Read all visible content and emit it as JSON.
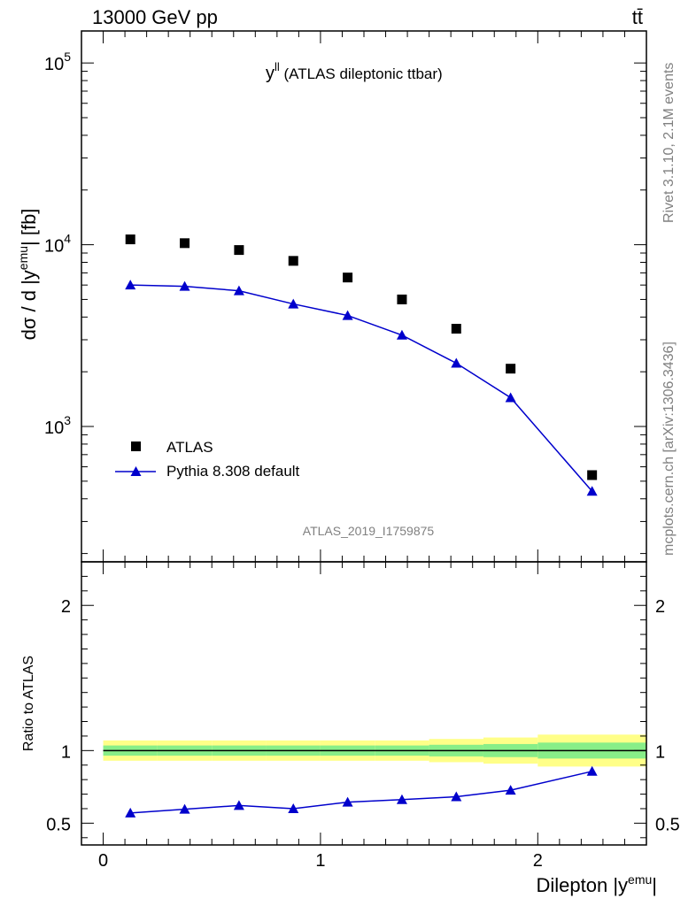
{
  "header": {
    "energy_label": "13000 GeV pp",
    "process_label": "tt̄"
  },
  "side_labels": {
    "rivet": "Rivet 3.1.10,  2.1M events",
    "mcplots": "mcplots.cern.ch [arXiv:1306.3436]"
  },
  "chart_data": [
    {
      "type": "scatter",
      "title_main": "y",
      "title_sup": "ll",
      "title_rest": " (ATLAS dileptonic ttbar)",
      "ylabel_main": "dσ / d |y",
      "ylabel_sup": "emu",
      "ylabel_rest": "| [fb]",
      "yscale": "log",
      "xlim": [
        -0.1,
        2.5
      ],
      "ylim": [
        180,
        150000
      ],
      "yticks": [
        {
          "value": 1000,
          "base": "10",
          "exp": "3"
        },
        {
          "value": 10000,
          "base": "10",
          "exp": "4"
        },
        {
          "value": 100000,
          "base": "10",
          "exp": "5"
        }
      ],
      "watermark": "ATLAS_2019_I1759875",
      "legend_position": "bottom-left",
      "series": [
        {
          "name": "ATLAS",
          "color": "#000000",
          "marker": "square",
          "x": [
            0.125,
            0.375,
            0.625,
            0.875,
            1.125,
            1.375,
            1.625,
            1.875,
            2.25
          ],
          "y": [
            10700,
            10200,
            9350,
            8150,
            6600,
            5000,
            3450,
            2080,
            540
          ]
        },
        {
          "name": "Pythia 8.308 default",
          "color": "#0000cc",
          "marker": "triangle",
          "x": [
            0.125,
            0.375,
            0.625,
            0.875,
            1.125,
            1.375,
            1.625,
            1.875,
            2.25
          ],
          "y": [
            6000,
            5900,
            5580,
            4720,
            4080,
            3180,
            2230,
            1440,
            440
          ]
        }
      ]
    },
    {
      "type": "line",
      "ylabel": "Ratio to ATLAS",
      "xlabel_main": "Dilepton |y",
      "xlabel_sup": "emu",
      "xlabel_rest": "|",
      "xlim": [
        -0.1,
        2.5
      ],
      "ylim": [
        0.35,
        2.3
      ],
      "xticks": [
        {
          "value": 0,
          "label": "0"
        },
        {
          "value": 1,
          "label": "1"
        },
        {
          "value": 2,
          "label": "2"
        }
      ],
      "yticks": [
        {
          "value": 0.5,
          "label": "0.5"
        },
        {
          "value": 1,
          "label": "1"
        },
        {
          "value": 2,
          "label": "2"
        }
      ],
      "bands": [
        {
          "x0": 0.0,
          "x1": 0.25,
          "green": [
            0.965,
            1.035
          ],
          "yellow": [
            0.93,
            1.07
          ]
        },
        {
          "x0": 0.25,
          "x1": 0.5,
          "green": [
            0.965,
            1.035
          ],
          "yellow": [
            0.93,
            1.07
          ]
        },
        {
          "x0": 0.5,
          "x1": 0.75,
          "green": [
            0.965,
            1.035
          ],
          "yellow": [
            0.93,
            1.07
          ]
        },
        {
          "x0": 0.75,
          "x1": 1.0,
          "green": [
            0.965,
            1.035
          ],
          "yellow": [
            0.93,
            1.07
          ]
        },
        {
          "x0": 1.0,
          "x1": 1.25,
          "green": [
            0.965,
            1.035
          ],
          "yellow": [
            0.93,
            1.07
          ]
        },
        {
          "x0": 1.25,
          "x1": 1.5,
          "green": [
            0.965,
            1.035
          ],
          "yellow": [
            0.93,
            1.07
          ]
        },
        {
          "x0": 1.5,
          "x1": 1.75,
          "green": [
            0.96,
            1.04
          ],
          "yellow": [
            0.92,
            1.08
          ]
        },
        {
          "x0": 1.75,
          "x1": 2.0,
          "green": [
            0.955,
            1.045
          ],
          "yellow": [
            0.91,
            1.09
          ]
        },
        {
          "x0": 2.0,
          "x1": 2.5,
          "green": [
            0.945,
            1.055
          ],
          "yellow": [
            0.89,
            1.11
          ]
        }
      ],
      "reference": 1.0,
      "series": [
        {
          "name": "Pythia 8.308 default",
          "color": "#0000cc",
          "marker": "triangle",
          "x": [
            0.125,
            0.375,
            0.625,
            0.875,
            1.125,
            1.375,
            1.625,
            1.875,
            2.25
          ],
          "y": [
            0.57,
            0.596,
            0.622,
            0.6,
            0.645,
            0.662,
            0.682,
            0.727,
            0.857
          ],
          "err": [
            0.0,
            0.0,
            0.0,
            0.0,
            0.0,
            0.0,
            0.0,
            0.015,
            0.025
          ]
        }
      ]
    }
  ]
}
